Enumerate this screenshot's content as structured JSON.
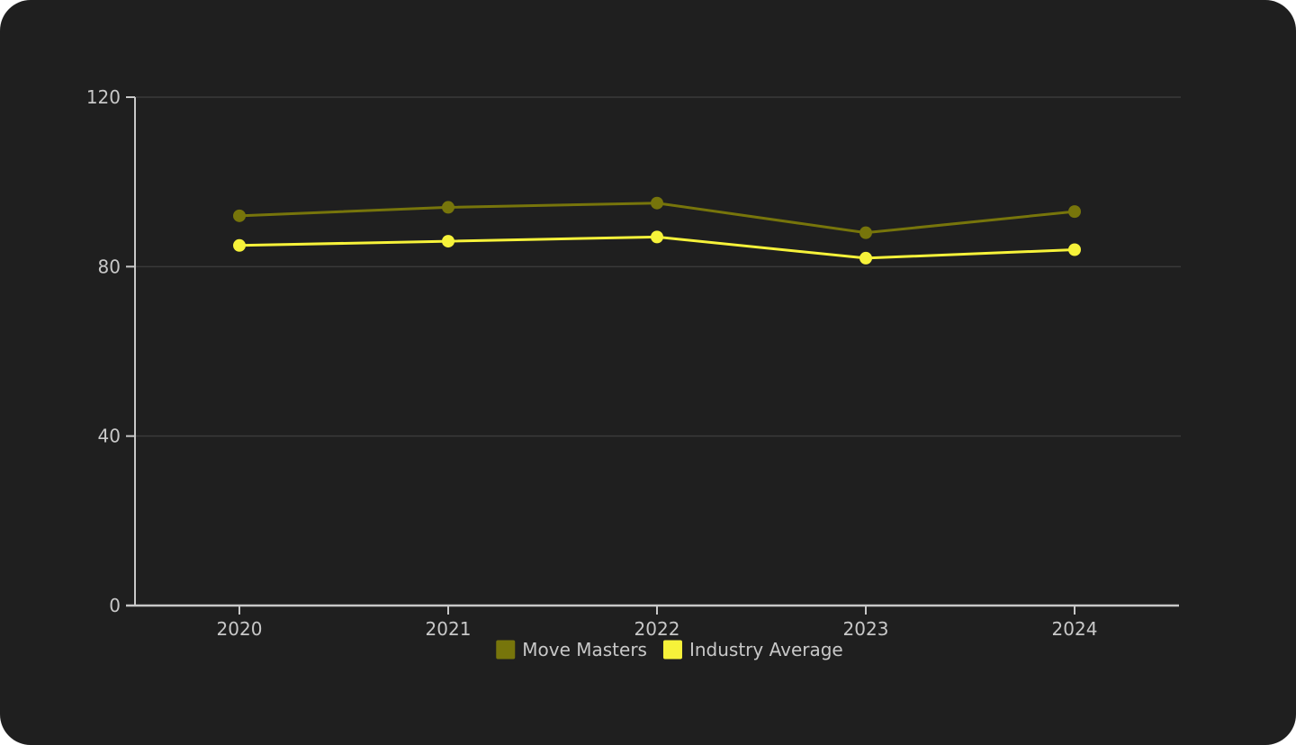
{
  "chart_data": {
    "type": "line",
    "title": "",
    "xlabel": "",
    "ylabel": "",
    "categories": [
      "2020",
      "2021",
      "2022",
      "2023",
      "2024"
    ],
    "ylim": [
      0,
      120
    ],
    "yticks": [
      0,
      40,
      80,
      120
    ],
    "grid": true,
    "legend_position": "bottom-center",
    "series": [
      {
        "name": "Move Masters",
        "color": "#77750b",
        "values": [
          92,
          94,
          95,
          88,
          93
        ]
      },
      {
        "name": "Industry Average",
        "color": "#f6f23a",
        "values": [
          85,
          86,
          87,
          82,
          84
        ]
      }
    ]
  },
  "colors": {
    "background": "#1f1f1f",
    "gridline": "#3a3a3a",
    "axis": "#c8c8c8",
    "text": "#c8c8c8"
  }
}
